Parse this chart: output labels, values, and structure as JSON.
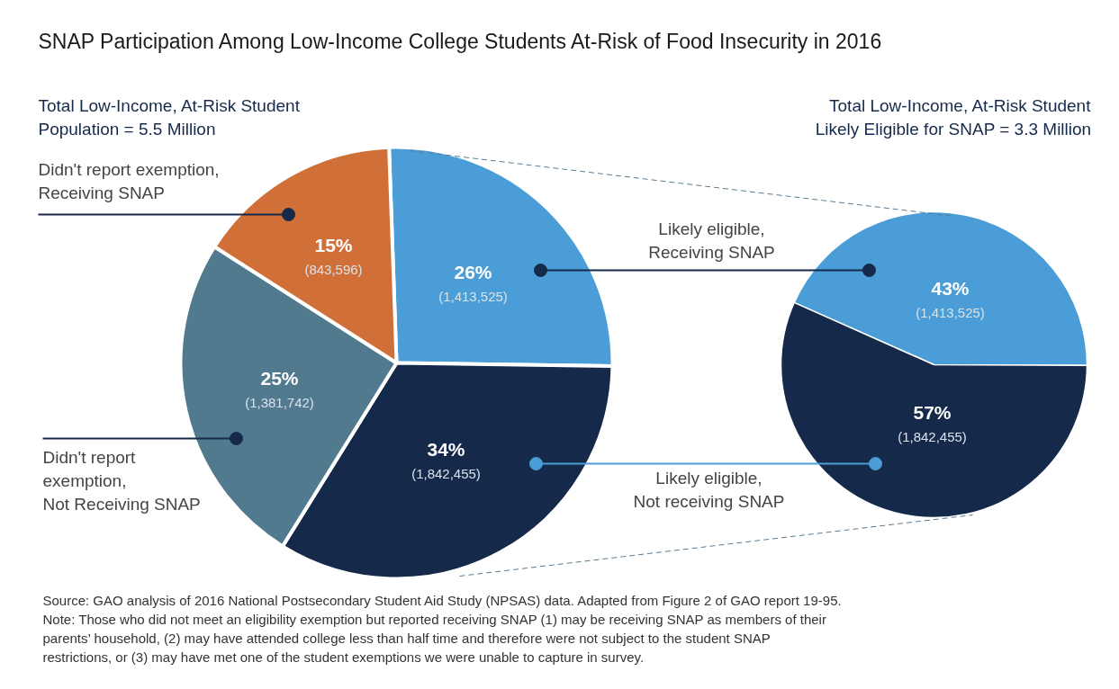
{
  "chart_data": [
    {
      "type": "pie",
      "title": "SNAP Participation Among Low-Income College Students At-Risk of Food Insecurity in 2016",
      "subtitle": "Total Low-Income, At-Risk Student\nPopulation = 5.5 Million",
      "categories": [
        "Likely eligible,\nReceiving SNAP",
        "Likely eligible,\nNot receiving SNAP",
        "Didn't report\nexemption,\nNot Receiving SNAP",
        "Didn't report exemption,\nReceiving SNAP"
      ],
      "values": [
        1413525,
        1842455,
        1381742,
        843596
      ],
      "colors": [
        "#4a9dd6",
        "#15294a",
        "#527a8f",
        "#d07038"
      ],
      "value_labels": [
        "26%\n(1,413,525)",
        "34%\n(1,842,455)",
        "25%\n(1,381,742)",
        "15%\n(843,596)"
      ],
      "annotations": [
        "Source: GAO analysis of 2016 National Postsecondary Student Aid Study (NPSAS) data. Adapted from Figure 2 of GAO report 19-95.\nNote: Those who did not meet an eligibility exemption but reported receiving SNAP (1) may be receiving SNAP as members of their\nparents’ household, (2) may have attended college less than half time and therefore were not subject to the student SNAP\nrestrictions, or (3) may have met one of the student exemptions we were unable to capture in survey."
      ]
    },
    {
      "type": "pie",
      "subtitle": "Total Low-Income, At-Risk Student\nLikely Eligible for SNAP = 3.3 Million",
      "categories": [
        null,
        null
      ],
      "values": [
        1413525,
        1842455
      ],
      "colors": [
        "#4a9dd6",
        "#15294a"
      ],
      "value_labels": [
        "43%\n(1,413,525)",
        "57%\n(1,842,455)"
      ]
    }
  ]
}
